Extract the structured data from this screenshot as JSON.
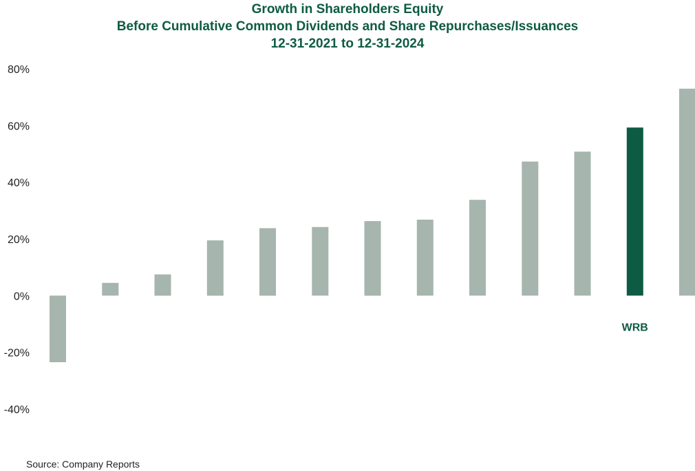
{
  "chart_data": {
    "type": "bar",
    "title_lines": [
      "Growth in Shareholders Equity",
      "Before Cumulative Common Dividends and Share Repurchases/Issuances",
      "12-31-2021 to 12-31-2024"
    ],
    "xlabel": "",
    "ylabel": "",
    "categories": [
      "",
      "",
      "",
      "",
      "",
      "",
      "",
      "",
      "",
      "",
      "",
      "WRB",
      ""
    ],
    "values": [
      -23.5,
      4.5,
      7.5,
      19.5,
      23.8,
      24.2,
      26.3,
      26.8,
      33.8,
      47.3,
      50.8,
      59.3,
      73.0
    ],
    "highlight": {
      "category": "WRB",
      "index": 11
    },
    "yticks": [
      "80%",
      "60%",
      "40%",
      "20%",
      "0%",
      "-20%",
      "-40%"
    ],
    "ytick_values": [
      80,
      60,
      40,
      20,
      0,
      -20,
      -40
    ],
    "ylim": [
      -40,
      80
    ],
    "grid": false,
    "legend": "none",
    "colors": {
      "default_bar": "#a6b5ad",
      "highlight_bar": "#0e5b44",
      "title": "#0e5b44",
      "text": "#222222"
    }
  },
  "footer": {
    "source": "Source: Company Reports"
  }
}
